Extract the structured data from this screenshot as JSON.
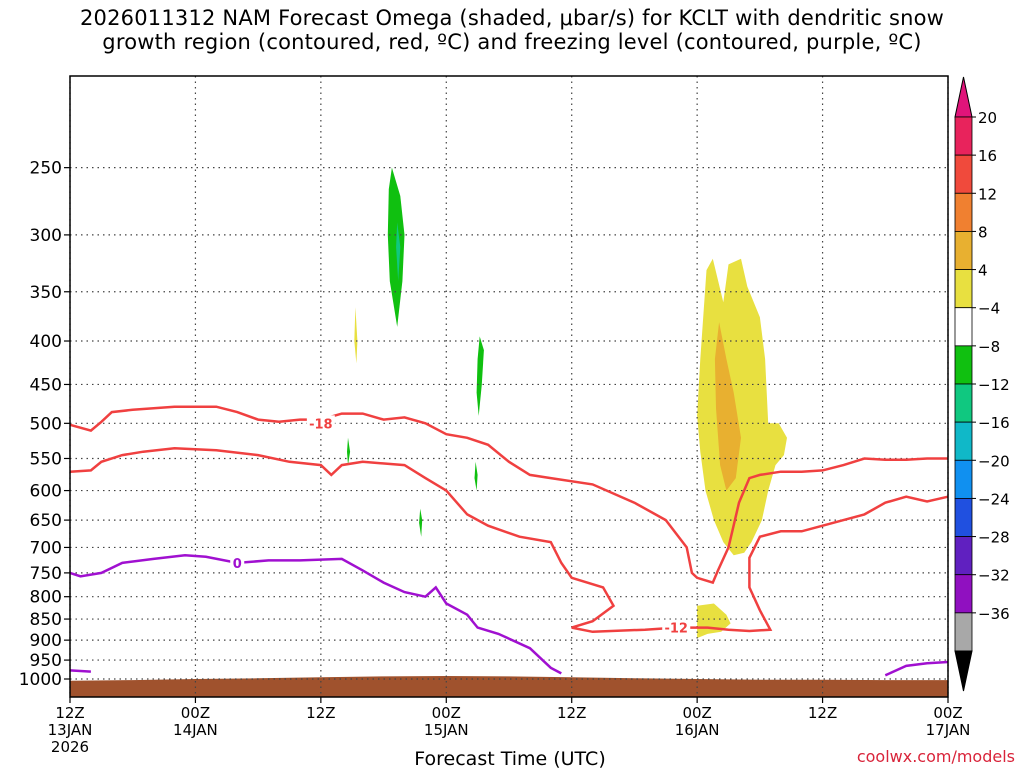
{
  "chart_data": {
    "type": "heatmap",
    "title_line1": "2026011312 NAM Forecast Omega (shaded, μbar/s) for KCLT with dendritic snow",
    "title_line2": "growth region (contoured, red, ºC) and freezing level (contoured, purple, ºC)",
    "xlabel": "Forecast Time (UTC)",
    "credit": "coolwx.com/models",
    "y_axis": {
      "label": "",
      "scale": "log",
      "range": [
        1050,
        195
      ],
      "ticks": [
        250,
        300,
        350,
        400,
        450,
        500,
        550,
        600,
        650,
        700,
        750,
        800,
        850,
        900,
        950,
        1000
      ]
    },
    "x_axis": {
      "range_hours": [
        0,
        84
      ],
      "ticks": [
        {
          "hour": 0,
          "line1": "12Z",
          "line2": "13JAN",
          "line3": "2026"
        },
        {
          "hour": 12,
          "line1": "00Z",
          "line2": "14JAN",
          "line3": ""
        },
        {
          "hour": 24,
          "line1": "12Z",
          "line2": "",
          "line3": ""
        },
        {
          "hour": 36,
          "line1": "00Z",
          "line2": "15JAN",
          "line3": ""
        },
        {
          "hour": 48,
          "line1": "12Z",
          "line2": "",
          "line3": ""
        },
        {
          "hour": 60,
          "line1": "00Z",
          "line2": "16JAN",
          "line3": ""
        },
        {
          "hour": 72,
          "line1": "12Z",
          "line2": "",
          "line3": ""
        },
        {
          "hour": 84,
          "line1": "00Z",
          "line2": "17JAN",
          "line3": ""
        }
      ]
    },
    "colorbar": {
      "labels": [
        "20",
        "16",
        "12",
        "8",
        "4",
        "−4",
        "−8",
        "−12",
        "−16",
        "−20",
        "−24",
        "−28",
        "−32",
        "−36"
      ],
      "colors": [
        "#e8235c",
        "#f04a3c",
        "#f08030",
        "#e8b030",
        "#e8e040",
        "#ffffff",
        "#10c010",
        "#10c880",
        "#10b8c8",
        "#1090f0",
        "#2050e0",
        "#6020c0",
        "#9010c0",
        "#a8a8a8"
      ],
      "top_arrow_color": "#e0147a",
      "bottom_arrow_color": "#000000"
    },
    "omega_regions": [
      {
        "name": "green-upper",
        "value": -6,
        "color": "#10c010",
        "points": [
          [
            30.8,
            250
          ],
          [
            31.6,
            270
          ],
          [
            32.0,
            300
          ],
          [
            31.8,
            340
          ],
          [
            31.3,
            385
          ],
          [
            30.6,
            340
          ],
          [
            30.4,
            300
          ],
          [
            30.5,
            265
          ]
        ]
      },
      {
        "name": "teal-upper-core",
        "value": -10,
        "color": "#10c880",
        "points": [
          [
            31.3,
            290
          ],
          [
            31.6,
            310
          ],
          [
            31.4,
            340
          ],
          [
            31.2,
            310
          ]
        ]
      },
      {
        "name": "green-mid",
        "value": -5,
        "color": "#10c010",
        "points": [
          [
            39.2,
            395
          ],
          [
            39.6,
            410
          ],
          [
            39.4,
            450
          ],
          [
            39.1,
            490
          ],
          [
            38.9,
            460
          ],
          [
            39.0,
            420
          ]
        ]
      },
      {
        "name": "green-small-1",
        "value": -5,
        "color": "#10c010",
        "points": [
          [
            26.6,
            520
          ],
          [
            26.8,
            540
          ],
          [
            26.6,
            560
          ],
          [
            26.5,
            540
          ]
        ]
      },
      {
        "name": "green-small-2",
        "value": -5,
        "color": "#10c010",
        "points": [
          [
            38.8,
            555
          ],
          [
            39.0,
            575
          ],
          [
            38.9,
            600
          ],
          [
            38.7,
            580
          ]
        ]
      },
      {
        "name": "green-small-3",
        "value": -5,
        "color": "#10c010",
        "points": [
          [
            33.5,
            630
          ],
          [
            33.7,
            650
          ],
          [
            33.6,
            680
          ],
          [
            33.4,
            655
          ]
        ]
      },
      {
        "name": "yellow-sliver",
        "value": 5,
        "color": "#e8e040",
        "points": [
          [
            27.3,
            365
          ],
          [
            27.5,
            400
          ],
          [
            27.4,
            425
          ],
          [
            27.2,
            400
          ]
        ]
      },
      {
        "name": "yellow-main",
        "value": 6,
        "color": "#e8e040",
        "points": [
          [
            60.9,
            330
          ],
          [
            61.5,
            320
          ],
          [
            62.5,
            360
          ],
          [
            63.0,
            325
          ],
          [
            64.2,
            320
          ],
          [
            64.8,
            345
          ],
          [
            66.0,
            375
          ],
          [
            66.5,
            420
          ],
          [
            66.8,
            500
          ],
          [
            67.8,
            500
          ],
          [
            68.6,
            520
          ],
          [
            68.3,
            545
          ],
          [
            67.5,
            560
          ],
          [
            66.8,
            600
          ],
          [
            66.2,
            650
          ],
          [
            65.2,
            690
          ],
          [
            64.5,
            710
          ],
          [
            63.5,
            715
          ],
          [
            62.5,
            690
          ],
          [
            61.6,
            650
          ],
          [
            60.8,
            600
          ],
          [
            60.3,
            540
          ],
          [
            60.0,
            490
          ],
          [
            60.3,
            420
          ]
        ]
      },
      {
        "name": "yellow-low",
        "value": 5,
        "color": "#e8e040",
        "points": [
          [
            60.0,
            820
          ],
          [
            61.6,
            815
          ],
          [
            62.8,
            840
          ],
          [
            63.2,
            860
          ],
          [
            62.3,
            880
          ],
          [
            61.0,
            885
          ],
          [
            60.0,
            895
          ]
        ]
      },
      {
        "name": "orange-core",
        "value": 9,
        "color": "#e8b030",
        "points": [
          [
            62.1,
            380
          ],
          [
            62.8,
            420
          ],
          [
            63.5,
            460
          ],
          [
            64.2,
            520
          ],
          [
            63.7,
            580
          ],
          [
            62.8,
            600
          ],
          [
            62.2,
            560
          ],
          [
            61.8,
            480
          ],
          [
            61.7,
            420
          ]
        ]
      }
    ],
    "dgz_contours": [
      {
        "label": "-18",
        "color": "#f04040",
        "points": [
          [
            0,
            502
          ],
          [
            2,
            510
          ],
          [
            3,
            498
          ],
          [
            4,
            485
          ],
          [
            6,
            482
          ],
          [
            10,
            478
          ],
          [
            14,
            478
          ],
          [
            16,
            485
          ],
          [
            18,
            495
          ],
          [
            20,
            498
          ],
          [
            22,
            495
          ],
          [
            24,
            495
          ],
          [
            26,
            487
          ],
          [
            28,
            487
          ],
          [
            30,
            495
          ],
          [
            32,
            492
          ],
          [
            34,
            500
          ],
          [
            36,
            515
          ],
          [
            38,
            520
          ],
          [
            40,
            530
          ],
          [
            42,
            555
          ],
          [
            44,
            575
          ],
          [
            46,
            580
          ],
          [
            50,
            590
          ],
          [
            54,
            620
          ],
          [
            57,
            650
          ],
          [
            59,
            700
          ],
          [
            59.5,
            750
          ],
          [
            60,
            760
          ],
          [
            61.5,
            770
          ],
          [
            62,
            745
          ],
          [
            63,
            700
          ],
          [
            64,
            620
          ],
          [
            65,
            580
          ],
          [
            66,
            575
          ],
          [
            68,
            570
          ],
          [
            70,
            570
          ],
          [
            72,
            568
          ],
          [
            74,
            560
          ],
          [
            76,
            550
          ],
          [
            78,
            552
          ],
          [
            80,
            552
          ],
          [
            82,
            550
          ],
          [
            84,
            550
          ]
        ],
        "label_at": [
          24,
          500
        ]
      },
      {
        "label": "-12",
        "color": "#f04040",
        "points": [
          [
            0,
            570
          ],
          [
            2,
            568
          ],
          [
            3,
            555
          ],
          [
            5,
            545
          ],
          [
            7,
            540
          ],
          [
            10,
            535
          ],
          [
            14,
            538
          ],
          [
            18,
            545
          ],
          [
            21,
            555
          ],
          [
            24,
            560
          ],
          [
            25,
            575
          ],
          [
            26,
            560
          ],
          [
            28,
            555
          ],
          [
            32,
            560
          ],
          [
            34,
            580
          ],
          [
            36,
            600
          ],
          [
            38,
            640
          ],
          [
            40,
            660
          ],
          [
            43,
            680
          ],
          [
            46,
            690
          ],
          [
            47,
            730
          ],
          [
            48,
            760
          ],
          [
            51,
            780
          ],
          [
            52,
            820
          ],
          [
            50,
            855
          ],
          [
            48,
            870
          ],
          [
            50,
            880
          ],
          [
            55,
            875
          ],
          [
            58,
            870
          ],
          [
            61,
            870
          ],
          [
            63,
            875
          ],
          [
            65,
            878
          ],
          [
            67,
            875
          ],
          [
            66,
            830
          ],
          [
            65,
            780
          ],
          [
            65,
            720
          ],
          [
            66,
            680
          ],
          [
            68,
            670
          ],
          [
            70,
            670
          ],
          [
            72,
            660
          ],
          [
            74,
            650
          ],
          [
            76,
            640
          ],
          [
            78,
            620
          ],
          [
            80,
            610
          ],
          [
            82,
            618
          ],
          [
            84,
            610
          ]
        ],
        "label_at": [
          58,
          870
        ]
      }
    ],
    "freezing_contour": {
      "label": "0",
      "color": "#a010d0",
      "points": [
        [
          0,
          750
        ],
        [
          1,
          757
        ],
        [
          3,
          750
        ],
        [
          5,
          730
        ],
        [
          8,
          722
        ],
        [
          11,
          715
        ],
        [
          13,
          718
        ],
        [
          16,
          730
        ],
        [
          19,
          725
        ],
        [
          22,
          725
        ],
        [
          26,
          722
        ],
        [
          28,
          745
        ],
        [
          30,
          770
        ],
        [
          32,
          790
        ],
        [
          34,
          800
        ],
        [
          35,
          780
        ],
        [
          36,
          815
        ],
        [
          38,
          840
        ],
        [
          39,
          870
        ],
        [
          41,
          885
        ],
        [
          44,
          920
        ],
        [
          46,
          970
        ],
        [
          47,
          985
        ]
      ],
      "label_at": [
        16,
        730
      ],
      "extra_segments": [
        [
          [
            0,
            977
          ],
          [
            2,
            980
          ]
        ],
        [
          [
            78,
            990
          ],
          [
            80,
            965
          ],
          [
            82,
            958
          ],
          [
            84,
            955
          ]
        ]
      ]
    },
    "terrain_pressure": [
      1005,
      1003,
      1000,
      998,
      995,
      993,
      992,
      993,
      995,
      998,
      1000,
      1002,
      1002,
      1003,
      1003
    ],
    "terrain_color": "#a0522d"
  }
}
